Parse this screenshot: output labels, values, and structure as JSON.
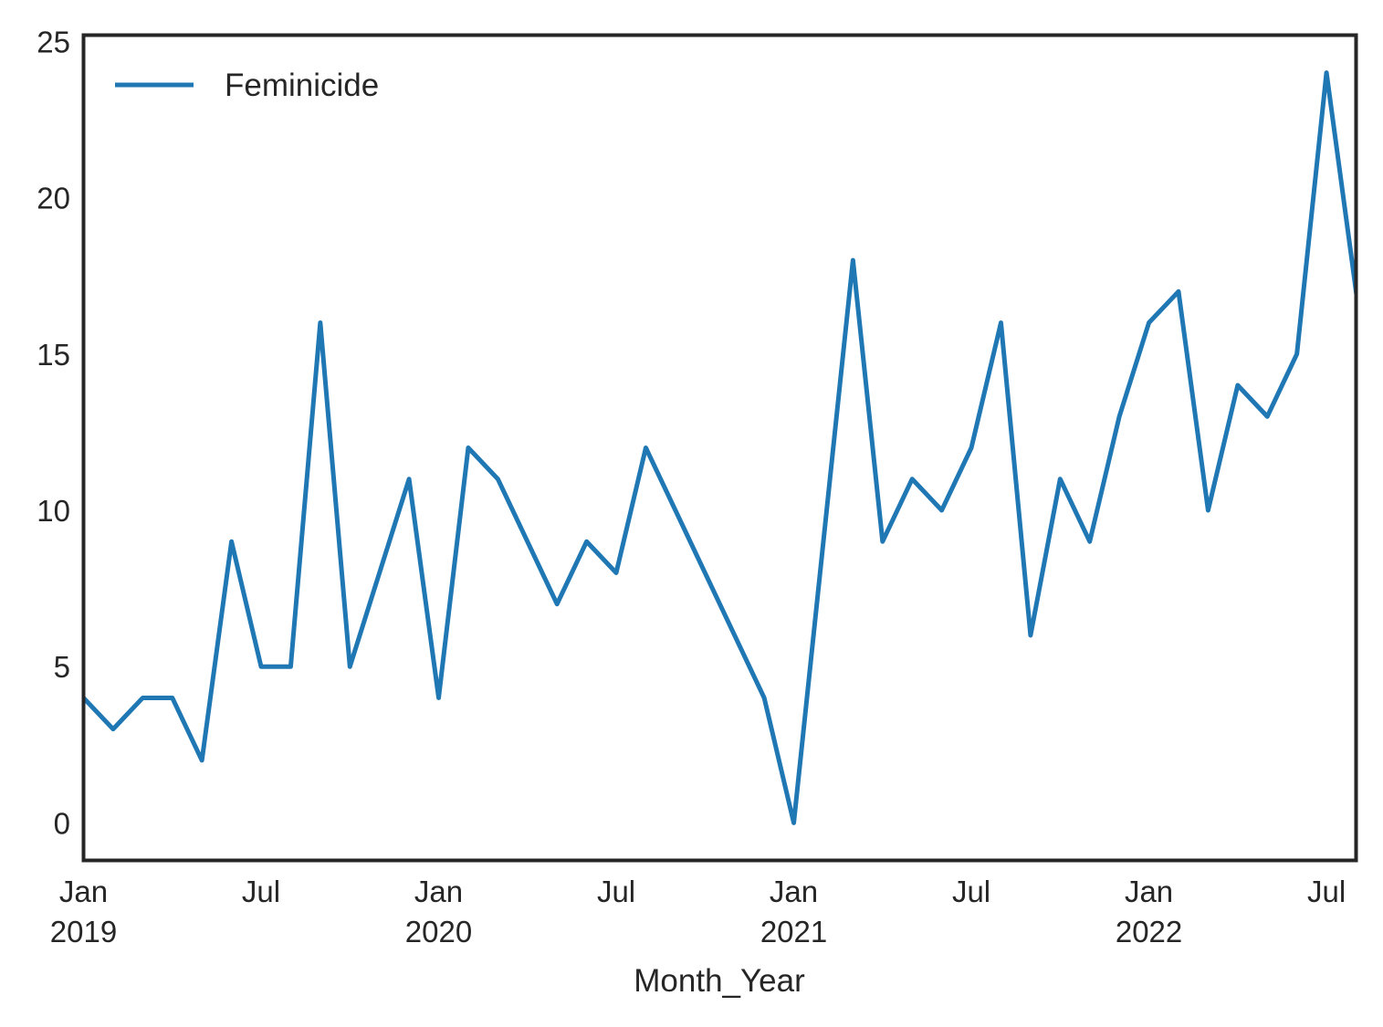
{
  "chart_data": {
    "type": "line",
    "xlabel": "Month_Year",
    "ylabel": "",
    "ylim": [
      -1.2,
      25.2
    ],
    "xlim": [
      "2019-01",
      "2022-08"
    ],
    "grid": false,
    "legend_position": "top-left",
    "yticks": [
      0,
      5,
      10,
      15,
      20,
      25
    ],
    "xticks": [
      {
        "date": "2019-01",
        "line1": "Jan",
        "line2": "2019"
      },
      {
        "date": "2019-07",
        "line1": "Jul",
        "line2": ""
      },
      {
        "date": "2020-01",
        "line1": "Jan",
        "line2": "2020"
      },
      {
        "date": "2020-07",
        "line1": "Jul",
        "line2": ""
      },
      {
        "date": "2021-01",
        "line1": "Jan",
        "line2": "2021"
      },
      {
        "date": "2021-07",
        "line1": "Jul",
        "line2": ""
      },
      {
        "date": "2022-01",
        "line1": "Jan",
        "line2": "2022"
      },
      {
        "date": "2022-07",
        "line1": "Jul",
        "line2": ""
      }
    ],
    "series": [
      {
        "name": "Feminicide",
        "color": "#1f77b4",
        "points": [
          {
            "x": "2019-01",
            "y": 4
          },
          {
            "x": "2019-02",
            "y": 3
          },
          {
            "x": "2019-03",
            "y": 4
          },
          {
            "x": "2019-04",
            "y": 4
          },
          {
            "x": "2019-05",
            "y": 2
          },
          {
            "x": "2019-06",
            "y": 9
          },
          {
            "x": "2019-07",
            "y": 5
          },
          {
            "x": "2019-08",
            "y": 5
          },
          {
            "x": "2019-09",
            "y": 16
          },
          {
            "x": "2019-10",
            "y": 5
          },
          {
            "x": "2019-12",
            "y": 11
          },
          {
            "x": "2020-01",
            "y": 4
          },
          {
            "x": "2020-02",
            "y": 12
          },
          {
            "x": "2020-03",
            "y": 11
          },
          {
            "x": "2020-05",
            "y": 7
          },
          {
            "x": "2020-06",
            "y": 9
          },
          {
            "x": "2020-07",
            "y": 8
          },
          {
            "x": "2020-08",
            "y": 12
          },
          {
            "x": "2020-12",
            "y": 4
          },
          {
            "x": "2021-01",
            "y": 0
          },
          {
            "x": "2021-03",
            "y": 18
          },
          {
            "x": "2021-04",
            "y": 9
          },
          {
            "x": "2021-05",
            "y": 11
          },
          {
            "x": "2021-06",
            "y": 10
          },
          {
            "x": "2021-07",
            "y": 12
          },
          {
            "x": "2021-08",
            "y": 16
          },
          {
            "x": "2021-09",
            "y": 6
          },
          {
            "x": "2021-10",
            "y": 11
          },
          {
            "x": "2021-11",
            "y": 9
          },
          {
            "x": "2021-12",
            "y": 13
          },
          {
            "x": "2022-01",
            "y": 16
          },
          {
            "x": "2022-02",
            "y": 17
          },
          {
            "x": "2022-03",
            "y": 10
          },
          {
            "x": "2022-04",
            "y": 14
          },
          {
            "x": "2022-05",
            "y": 13
          },
          {
            "x": "2022-06",
            "y": 15
          },
          {
            "x": "2022-07",
            "y": 24
          },
          {
            "x": "2022-08",
            "y": 17
          }
        ]
      }
    ]
  }
}
